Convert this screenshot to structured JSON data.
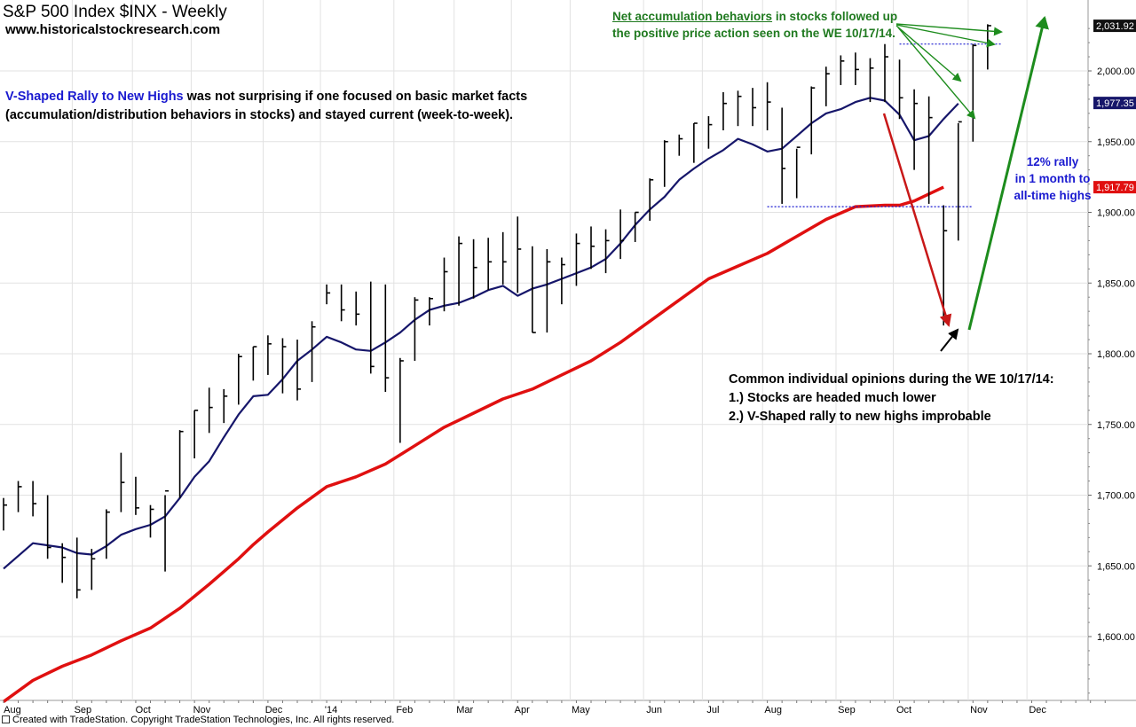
{
  "header": {
    "title": "S&P 500 Index  $INX - Weekly",
    "website": "www.historicalstockresearch.com"
  },
  "annotations": {
    "rally_title": "V-Shaped Rally to New Highs",
    "rally_rest_line1": " was not surprising if one focused on basic market facts",
    "rally_line2": "(accumulation/distribution behaviors in stocks) and stayed current (week-to-week).",
    "accum_underlined": "Net accumulation behaviors",
    "accum_rest_line1": " in stocks followed up",
    "accum_line2": "the positive price action seen on the WE 10/17/14.",
    "rally_pct": [
      "12% rally",
      "in 1 month to",
      "all-time highs"
    ],
    "opinions": [
      "Common individual opinions during the WE 10/17/14:",
      "1.) Stocks are headed much lower",
      "2.) V-Shaped rally to new highs improbable"
    ]
  },
  "footer": "Created with TradeStation.  Copyright TradeStation Technologies, Inc.  All rights reserved.",
  "chart_data": {
    "type": "ohlc_bar",
    "ylim": [
      1555,
      2040
    ],
    "yticks": [
      1600,
      1650,
      1700,
      1750,
      1800,
      1850,
      1900,
      1950,
      2000
    ],
    "ytick_labels": [
      "1,600.00",
      "1,650.00",
      "1,700.00",
      "1,750.00",
      "1,800.00",
      "1,850.00",
      "1,900.00",
      "1,950.00",
      "2,000.00"
    ],
    "month_labels": [
      "Aug",
      "Sep",
      "Oct",
      "Nov",
      "Dec",
      "'14",
      "Feb",
      "Mar",
      "Apr",
      "May",
      "Jun",
      "Jul",
      "Aug",
      "Sep",
      "Oct",
      "Nov",
      "Dec"
    ],
    "month_label_week": [
      0.6,
      5.4,
      9.5,
      13.5,
      18.4,
      22.3,
      27.3,
      31.4,
      35.3,
      39.3,
      44.3,
      48.3,
      52.4,
      57.4,
      61.3,
      66.4,
      70.4
    ],
    "week_count": 75,
    "grid": true,
    "price_labels": [
      {
        "text": "2,031.92",
        "value": 2031.92,
        "style": "dark"
      },
      {
        "text": "1,977.35",
        "value": 1977.35,
        "style": "navy"
      },
      {
        "text": "1,917.79",
        "value": 1917.79,
        "style": "red"
      }
    ],
    "ohlc": [
      {
        "h": 1698,
        "l": 1675,
        "c": 1693
      },
      {
        "h": 1710,
        "l": 1688,
        "c": 1706
      },
      {
        "h": 1710,
        "l": 1685,
        "c": 1694
      },
      {
        "h": 1700,
        "l": 1655,
        "c": 1663
      },
      {
        "h": 1666,
        "l": 1638,
        "c": 1656
      },
      {
        "h": 1670,
        "l": 1627,
        "c": 1633
      },
      {
        "h": 1662,
        "l": 1633,
        "c": 1655
      },
      {
        "h": 1690,
        "l": 1655,
        "c": 1688
      },
      {
        "h": 1730,
        "l": 1688,
        "c": 1709
      },
      {
        "h": 1713,
        "l": 1686,
        "c": 1691
      },
      {
        "h": 1693,
        "l": 1670,
        "c": 1690
      },
      {
        "h": 1700,
        "l": 1646,
        "c": 1703
      },
      {
        "h": 1746,
        "l": 1698,
        "c": 1745
      },
      {
        "h": 1760,
        "l": 1726,
        "c": 1760
      },
      {
        "h": 1776,
        "l": 1744,
        "c": 1762
      },
      {
        "h": 1775,
        "l": 1751,
        "c": 1770
      },
      {
        "h": 1800,
        "l": 1764,
        "c": 1798
      },
      {
        "h": 1805,
        "l": 1781,
        "c": 1805
      },
      {
        "h": 1813,
        "l": 1785,
        "c": 1807
      },
      {
        "h": 1811,
        "l": 1772,
        "c": 1805
      },
      {
        "h": 1810,
        "l": 1767,
        "c": 1775
      },
      {
        "h": 1823,
        "l": 1780,
        "c": 1819
      },
      {
        "h": 1849,
        "l": 1835,
        "c": 1843
      },
      {
        "h": 1849,
        "l": 1823,
        "c": 1831
      },
      {
        "h": 1844,
        "l": 1820,
        "c": 1828
      },
      {
        "h": 1851,
        "l": 1786,
        "c": 1791
      },
      {
        "h": 1849,
        "l": 1773,
        "c": 1783
      },
      {
        "h": 1797,
        "l": 1737,
        "c": 1795
      },
      {
        "h": 1840,
        "l": 1795,
        "c": 1838
      },
      {
        "h": 1840,
        "l": 1820,
        "c": 1839
      },
      {
        "h": 1868,
        "l": 1830,
        "c": 1858
      },
      {
        "h": 1883,
        "l": 1834,
        "c": 1878
      },
      {
        "h": 1881,
        "l": 1839,
        "c": 1861
      },
      {
        "h": 1882,
        "l": 1845,
        "c": 1865
      },
      {
        "h": 1886,
        "l": 1849,
        "c": 1865
      },
      {
        "h": 1897,
        "l": 1843,
        "c": 1874
      },
      {
        "h": 1876,
        "l": 1815,
        "c": 1815
      },
      {
        "h": 1874,
        "l": 1815,
        "c": 1865
      },
      {
        "h": 1868,
        "l": 1835,
        "c": 1863
      },
      {
        "h": 1885,
        "l": 1848,
        "c": 1878
      },
      {
        "h": 1890,
        "l": 1860,
        "c": 1876
      },
      {
        "h": 1888,
        "l": 1857,
        "c": 1880
      },
      {
        "h": 1902,
        "l": 1867,
        "c": 1880
      },
      {
        "h": 1900,
        "l": 1879,
        "c": 1900
      },
      {
        "h": 1924,
        "l": 1894,
        "c": 1923
      },
      {
        "h": 1951,
        "l": 1918,
        "c": 1950
      },
      {
        "h": 1955,
        "l": 1940,
        "c": 1952
      },
      {
        "h": 1963,
        "l": 1935,
        "c": 1963
      },
      {
        "h": 1968,
        "l": 1945,
        "c": 1962
      },
      {
        "h": 1985,
        "l": 1958,
        "c": 1977
      },
      {
        "h": 1986,
        "l": 1961,
        "c": 1982
      },
      {
        "h": 1988,
        "l": 1961,
        "c": 1974
      },
      {
        "h": 1992,
        "l": 1958,
        "c": 1978
      },
      {
        "h": 1974,
        "l": 1906,
        "c": 1931
      },
      {
        "h": 1945,
        "l": 1910,
        "c": 1946
      },
      {
        "h": 1989,
        "l": 1941,
        "c": 1988
      },
      {
        "h": 2003,
        "l": 1975,
        "c": 1998
      },
      {
        "h": 2011,
        "l": 1990,
        "c": 2007
      },
      {
        "h": 2013,
        "l": 1990,
        "c": 2001
      },
      {
        "h": 2009,
        "l": 1978,
        "c": 2002
      },
      {
        "h": 2019,
        "l": 1978,
        "c": 2010
      },
      {
        "h": 2008,
        "l": 1966,
        "c": 1981
      },
      {
        "h": 1987,
        "l": 1930,
        "c": 1977
      },
      {
        "h": 1982,
        "l": 1906,
        "c": 1967
      },
      {
        "h": 1905,
        "l": 1820,
        "c": 1887
      },
      {
        "h": 1963,
        "l": 1880,
        "c": 1964
      },
      {
        "h": 2019,
        "l": 1950,
        "c": 2018
      },
      {
        "h": 2033,
        "l": 2001,
        "c": 2032
      }
    ],
    "ma_short": {
      "name": "",
      "color": "#16166a",
      "points": [
        [
          0,
          1648
        ],
        [
          2,
          1666
        ],
        [
          4,
          1663
        ],
        [
          5,
          1659
        ],
        [
          6,
          1658
        ],
        [
          7,
          1664
        ],
        [
          8,
          1672
        ],
        [
          9,
          1676
        ],
        [
          10,
          1679
        ],
        [
          11,
          1685
        ],
        [
          12,
          1698
        ],
        [
          13,
          1713
        ],
        [
          14,
          1724
        ],
        [
          15,
          1741
        ],
        [
          16,
          1757
        ],
        [
          17,
          1770
        ],
        [
          18,
          1771
        ],
        [
          19,
          1782
        ],
        [
          20,
          1795
        ],
        [
          21,
          1803
        ],
        [
          22,
          1812
        ],
        [
          23,
          1808
        ],
        [
          24,
          1803
        ],
        [
          25,
          1802
        ],
        [
          26,
          1808
        ],
        [
          27,
          1815
        ],
        [
          28,
          1824
        ],
        [
          29,
          1831
        ],
        [
          30,
          1834
        ],
        [
          31,
          1836
        ],
        [
          32,
          1840
        ],
        [
          33,
          1845
        ],
        [
          34,
          1848
        ],
        [
          35,
          1841
        ],
        [
          36,
          1846
        ],
        [
          37,
          1849
        ],
        [
          38,
          1853
        ],
        [
          39,
          1857
        ],
        [
          40,
          1861
        ],
        [
          41,
          1867
        ],
        [
          42,
          1878
        ],
        [
          43,
          1891
        ],
        [
          44,
          1902
        ],
        [
          45,
          1911
        ],
        [
          46,
          1923
        ],
        [
          47,
          1931
        ],
        [
          48,
          1938
        ],
        [
          49,
          1944
        ],
        [
          50,
          1952
        ],
        [
          51,
          1948
        ],
        [
          52,
          1943
        ],
        [
          53,
          1945
        ],
        [
          54,
          1954
        ],
        [
          55,
          1963
        ],
        [
          56,
          1970
        ],
        [
          57,
          1973
        ],
        [
          58,
          1978
        ],
        [
          59,
          1981
        ],
        [
          60,
          1979
        ],
        [
          61,
          1969
        ],
        [
          62,
          1951
        ],
        [
          63,
          1954
        ],
        [
          64,
          1966
        ],
        [
          65,
          1977
        ]
      ]
    },
    "ma_long": {
      "name": "",
      "color": "#e01010",
      "points": [
        [
          0,
          1554
        ],
        [
          2,
          1569
        ],
        [
          4,
          1579
        ],
        [
          6,
          1587
        ],
        [
          8,
          1597
        ],
        [
          10,
          1606
        ],
        [
          12,
          1620
        ],
        [
          14,
          1637
        ],
        [
          16,
          1655
        ],
        [
          17,
          1665
        ],
        [
          18,
          1674
        ],
        [
          20,
          1691
        ],
        [
          22,
          1706
        ],
        [
          24,
          1713
        ],
        [
          26,
          1722
        ],
        [
          28,
          1735
        ],
        [
          30,
          1748
        ],
        [
          32,
          1758
        ],
        [
          34,
          1768
        ],
        [
          36,
          1775
        ],
        [
          38,
          1785
        ],
        [
          40,
          1795
        ],
        [
          42,
          1808
        ],
        [
          44,
          1823
        ],
        [
          46,
          1838
        ],
        [
          48,
          1853
        ],
        [
          50,
          1862
        ],
        [
          52,
          1871
        ],
        [
          54,
          1883
        ],
        [
          56,
          1895
        ],
        [
          58,
          1904
        ],
        [
          60,
          1905
        ],
        [
          61,
          1905
        ],
        [
          62,
          1908
        ],
        [
          63,
          1913
        ],
        [
          64,
          1917.79
        ]
      ]
    },
    "dotted_levels": [
      {
        "value": 2019,
        "from_week": 61,
        "to_week": 68
      },
      {
        "value": 1904,
        "from_week": 52,
        "to_week": 66
      }
    ]
  }
}
